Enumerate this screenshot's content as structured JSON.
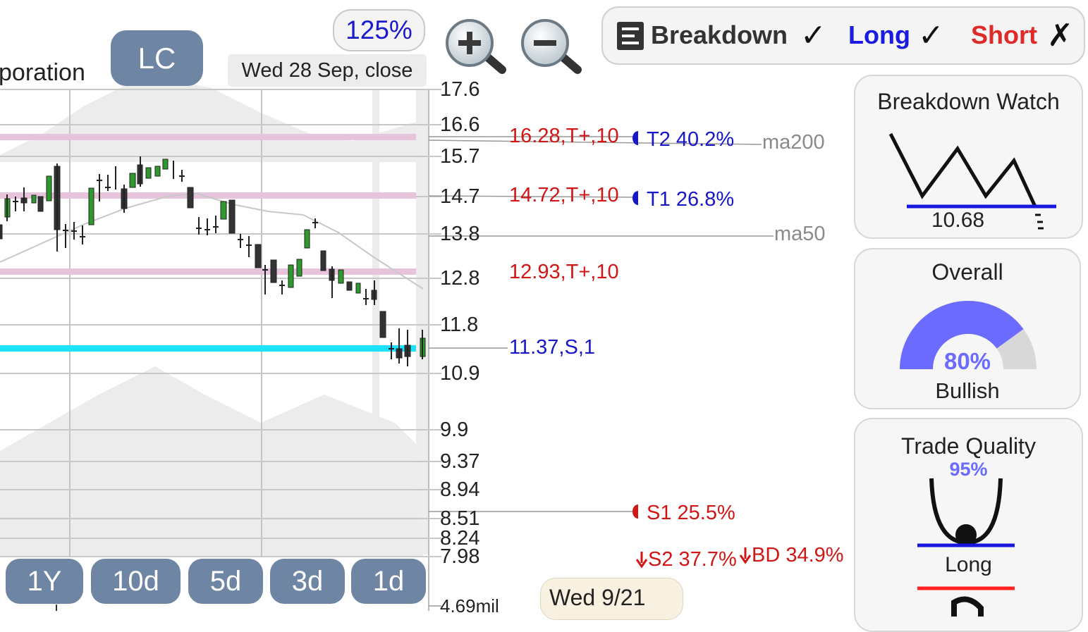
{
  "header": {
    "company_partial": "poration",
    "ticker": "LC",
    "zoom": "125%",
    "date_label": "Wed 28 Sep, close"
  },
  "zoom_controls": {
    "zoom_in_icon": "magnifier-plus-icon",
    "zoom_out_icon": "magnifier-minus-icon"
  },
  "filter_bar": {
    "icon": "list-icon",
    "breakdown": {
      "label": "Breakdown",
      "mark": "✓",
      "color": "#333333"
    },
    "long": {
      "label": "Long",
      "mark": "✓",
      "color": "#1a1ae0"
    },
    "short": {
      "label": "Short",
      "mark": "✗",
      "color": "#e02a2a"
    }
  },
  "price_axis": [
    "17.6",
    "16.6",
    "15.7",
    "14.7",
    "13.8",
    "12.8",
    "11.8",
    "10.9",
    "9.9",
    "9.37",
    "8.94",
    "8.51",
    "8.24",
    "7.98"
  ],
  "volume_label": "4.69mil",
  "levels": {
    "t2_resist": "16.28,T+,10",
    "t1_resist": "14.72,T+,10",
    "r3": "12.93,T+,10",
    "support": "11.37,S,1",
    "t2": "T2 40.2%",
    "t1": "T1 26.8%",
    "s1": "S1 25.5%",
    "s2": "S2 37.7%",
    "bd": "BD 34.9%",
    "ma200": "ma200",
    "ma50": "ma50"
  },
  "range_buttons": [
    "1Y",
    "10d",
    "5d",
    "3d",
    "1d"
  ],
  "date_tooltip": "Wed 9/21",
  "panels": {
    "breakdown_watch": {
      "title": "Breakdown Watch",
      "value": "10.68"
    },
    "overall": {
      "title": "Overall",
      "percent": "80%",
      "sentiment": "Bullish",
      "fraction": 0.8
    },
    "trade_quality": {
      "title": "Trade Quality",
      "percent": "95%",
      "label": "Long"
    }
  },
  "colors": {
    "accent": "#6e85a3",
    "support": "#1ee0ff",
    "resist": "#e8c4dc",
    "up": "#2e9a2e",
    "down": "#333333"
  }
}
